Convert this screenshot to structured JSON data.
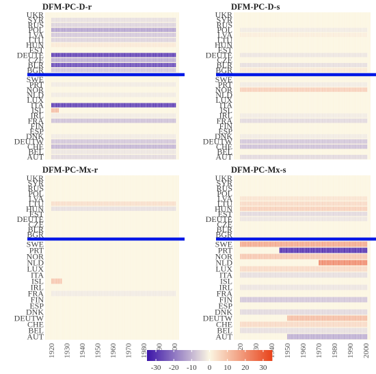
{
  "chart_data": {
    "type": "heatmap",
    "colorbar": {
      "ticks": [
        -30,
        -20,
        -10,
        0,
        10,
        20,
        30
      ],
      "range": [
        -35,
        35
      ],
      "colors": {
        "low": "#3b14a8",
        "mid": "#fbf6e3",
        "high": "#e8431a"
      }
    },
    "x_ticks": [
      1920,
      1930,
      1940,
      1950,
      1960,
      1970,
      1980,
      1990,
      2000
    ],
    "x_range": [
      1916,
      2003
    ],
    "ylabels_top": [
      "UKR",
      "SYR",
      "RUS",
      "POL",
      "LVA",
      "LTU",
      "HUN",
      "EST",
      "DEUTE",
      "CZE",
      "BLR",
      "BGR"
    ],
    "ylabels_bottom": [
      "SWE",
      "PRT",
      "NOR",
      "NLD",
      "LUX",
      "ITA",
      "ISL",
      "IRL",
      "FRA",
      "FIN",
      "ESP",
      "DNK",
      "DEUTW",
      "CHE",
      "BEL",
      "AUT"
    ],
    "panels": [
      {
        "title": "DFM-PC-D-r",
        "rows_top": [
          {
            "from": 1920,
            "to": 2000,
            "v": 0
          },
          {
            "from": 1920,
            "to": 2000,
            "v": -4
          },
          {
            "from": 1920,
            "to": 2000,
            "v": -6
          },
          {
            "from": 1920,
            "to": 2000,
            "v": -14
          },
          {
            "from": 1920,
            "to": 2000,
            "v": -8
          },
          {
            "from": 1920,
            "to": 2000,
            "v": -6
          },
          {
            "from": 1920,
            "to": 2000,
            "v": 3
          },
          {
            "from": 1920,
            "to": 2000,
            "v": 0
          },
          {
            "from": 1920,
            "to": 2000,
            "v": -30
          },
          {
            "from": 1920,
            "to": 2000,
            "v": -12
          },
          {
            "from": 1920,
            "to": 2000,
            "v": -28
          },
          {
            "from": 1920,
            "to": 2000,
            "v": -8
          }
        ],
        "rows_bottom": [
          {
            "from": 1920,
            "to": 2000,
            "v": 0
          },
          {
            "from": 1920,
            "to": 2000,
            "v": -2
          },
          {
            "from": 1920,
            "to": 2000,
            "v": 0
          },
          {
            "from": 1920,
            "to": 2000,
            "v": -2
          },
          {
            "from": 1920,
            "to": 2000,
            "v": 0
          },
          {
            "from": 1920,
            "to": 2000,
            "v": -30
          },
          {
            "from": 1920,
            "to": 1924,
            "v": 12
          },
          {
            "from": 1920,
            "to": 2000,
            "v": -2
          },
          {
            "from": 1920,
            "to": 2000,
            "v": -9
          },
          {
            "from": 1920,
            "to": 2000,
            "v": 0
          },
          {
            "from": 1920,
            "to": 2000,
            "v": 0
          },
          {
            "from": 1920,
            "to": 2000,
            "v": -2
          },
          {
            "from": 1920,
            "to": 2000,
            "v": -8
          },
          {
            "from": 1920,
            "to": 2000,
            "v": -11
          },
          {
            "from": 1920,
            "to": 2000,
            "v": -3
          },
          {
            "from": 1920,
            "to": 2000,
            "v": -5
          }
        ]
      },
      {
        "title": "DFM-PC-D-s",
        "rows_top": [
          {
            "from": 1920,
            "to": 2000,
            "v": 0
          },
          {
            "from": 1920,
            "to": 2000,
            "v": 0
          },
          {
            "from": 1920,
            "to": 2000,
            "v": 0
          },
          {
            "from": 1920,
            "to": 2000,
            "v": -2
          },
          {
            "from": 1920,
            "to": 2000,
            "v": 2
          },
          {
            "from": 1920,
            "to": 2000,
            "v": 0
          },
          {
            "from": 1920,
            "to": 2000,
            "v": 0
          },
          {
            "from": 1920,
            "to": 2000,
            "v": 0
          },
          {
            "from": 1920,
            "to": 2000,
            "v": -3
          },
          {
            "from": 1920,
            "to": 2000,
            "v": 0
          },
          {
            "from": 1920,
            "to": 2000,
            "v": -4
          },
          {
            "from": 1920,
            "to": 2000,
            "v": 3
          }
        ],
        "rows_bottom": [
          {
            "from": 1920,
            "to": 2000,
            "v": 0
          },
          {
            "from": 1920,
            "to": 2000,
            "v": -2
          },
          {
            "from": 1920,
            "to": 2000,
            "v": 8
          },
          {
            "from": 1920,
            "to": 2000,
            "v": 0
          },
          {
            "from": 1920,
            "to": 2000,
            "v": 0
          },
          {
            "from": 1920,
            "to": 2000,
            "v": 0
          },
          {
            "from": 1920,
            "to": 2000,
            "v": 0
          },
          {
            "from": 1920,
            "to": 2000,
            "v": -2
          },
          {
            "from": 1920,
            "to": 2000,
            "v": -5
          },
          {
            "from": 1920,
            "to": 2000,
            "v": 0
          },
          {
            "from": 1920,
            "to": 2000,
            "v": 0
          },
          {
            "from": 1920,
            "to": 2000,
            "v": -2
          },
          {
            "from": 1920,
            "to": 2000,
            "v": -8
          },
          {
            "from": 1920,
            "to": 2000,
            "v": -9
          },
          {
            "from": 1920,
            "to": 2000,
            "v": 0
          },
          {
            "from": 1920,
            "to": 2000,
            "v": -5
          }
        ]
      },
      {
        "title": "DFM-PC-Mx-r",
        "rows_top": [
          {
            "from": 1920,
            "to": 2000,
            "v": 0
          },
          {
            "from": 1920,
            "to": 2000,
            "v": 0
          },
          {
            "from": 1920,
            "to": 2000,
            "v": 0
          },
          {
            "from": 1920,
            "to": 2000,
            "v": 0
          },
          {
            "from": 1920,
            "to": 2000,
            "v": 0
          },
          {
            "from": 1920,
            "to": 2000,
            "v": 5
          },
          {
            "from": 1920,
            "to": 2000,
            "v": -4
          },
          {
            "from": 1920,
            "to": 2000,
            "v": 0
          },
          {
            "from": 1920,
            "to": 2000,
            "v": 0
          },
          {
            "from": 1920,
            "to": 2000,
            "v": 0
          },
          {
            "from": 1920,
            "to": 2000,
            "v": 0
          },
          {
            "from": 1920,
            "to": 2000,
            "v": 0
          }
        ],
        "rows_bottom": [
          {
            "from": 1920,
            "to": 2000,
            "v": 0
          },
          {
            "from": 1920,
            "to": 2000,
            "v": 0
          },
          {
            "from": 1920,
            "to": 2000,
            "v": 0
          },
          {
            "from": 1920,
            "to": 2000,
            "v": 0
          },
          {
            "from": 1920,
            "to": 2000,
            "v": 0
          },
          {
            "from": 1920,
            "to": 2000,
            "v": 0
          },
          {
            "from": 1920,
            "to": 1926,
            "v": 10
          },
          {
            "from": 1920,
            "to": 2000,
            "v": 0
          },
          {
            "from": 1920,
            "to": 2000,
            "v": -2
          },
          {
            "from": 1920,
            "to": 2000,
            "v": 0
          },
          {
            "from": 1920,
            "to": 2000,
            "v": 0
          },
          {
            "from": 1920,
            "to": 2000,
            "v": 0
          },
          {
            "from": 1920,
            "to": 2000,
            "v": 0
          },
          {
            "from": 1920,
            "to": 2000,
            "v": 0
          },
          {
            "from": 1920,
            "to": 2000,
            "v": 0
          },
          {
            "from": 1920,
            "to": 2000,
            "v": 0
          }
        ]
      },
      {
        "title": "DFM-PC-Mx-s",
        "rows_top": [
          {
            "from": 1920,
            "to": 2000,
            "v": 0
          },
          {
            "from": 1920,
            "to": 2000,
            "v": 0
          },
          {
            "from": 1920,
            "to": 2000,
            "v": 0
          },
          {
            "from": 1920,
            "to": 2000,
            "v": 0
          },
          {
            "from": 1920,
            "to": 2000,
            "v": 4
          },
          {
            "from": 1920,
            "to": 2000,
            "v": 6
          },
          {
            "from": 1920,
            "to": 2000,
            "v": 8
          },
          {
            "from": 1920,
            "to": 2000,
            "v": -5
          },
          {
            "from": 1920,
            "to": 2000,
            "v": -3
          },
          {
            "from": 1920,
            "to": 2000,
            "v": 0
          },
          {
            "from": 1920,
            "to": 2000,
            "v": 0
          },
          {
            "from": 1920,
            "to": 2000,
            "v": 0
          }
        ],
        "rows_bottom": [
          {
            "from": 1920,
            "to": 2000,
            "v": 16
          },
          {
            "from": 1945,
            "to": 2000,
            "v": -32
          },
          {
            "from": 1920,
            "to": 2000,
            "v": 10
          },
          {
            "from": 1970,
            "to": 2000,
            "v": 22
          },
          {
            "from": 1920,
            "to": 2000,
            "v": 6
          },
          {
            "from": 1920,
            "to": 2000,
            "v": -4
          },
          {
            "from": 1920,
            "to": 2000,
            "v": 0
          },
          {
            "from": 1920,
            "to": 2000,
            "v": -3
          },
          {
            "from": 1920,
            "to": 2000,
            "v": 0
          },
          {
            "from": 1920,
            "to": 2000,
            "v": -8
          },
          {
            "from": 1920,
            "to": 2000,
            "v": 0
          },
          {
            "from": 1920,
            "to": 2000,
            "v": -5
          },
          {
            "from": 1950,
            "to": 2000,
            "v": 12
          },
          {
            "from": 1920,
            "to": 2000,
            "v": 6
          },
          {
            "from": 1920,
            "to": 2000,
            "v": -4
          },
          {
            "from": 1950,
            "to": 2000,
            "v": -12
          }
        ]
      }
    ],
    "separator_color": "#0018e6"
  }
}
